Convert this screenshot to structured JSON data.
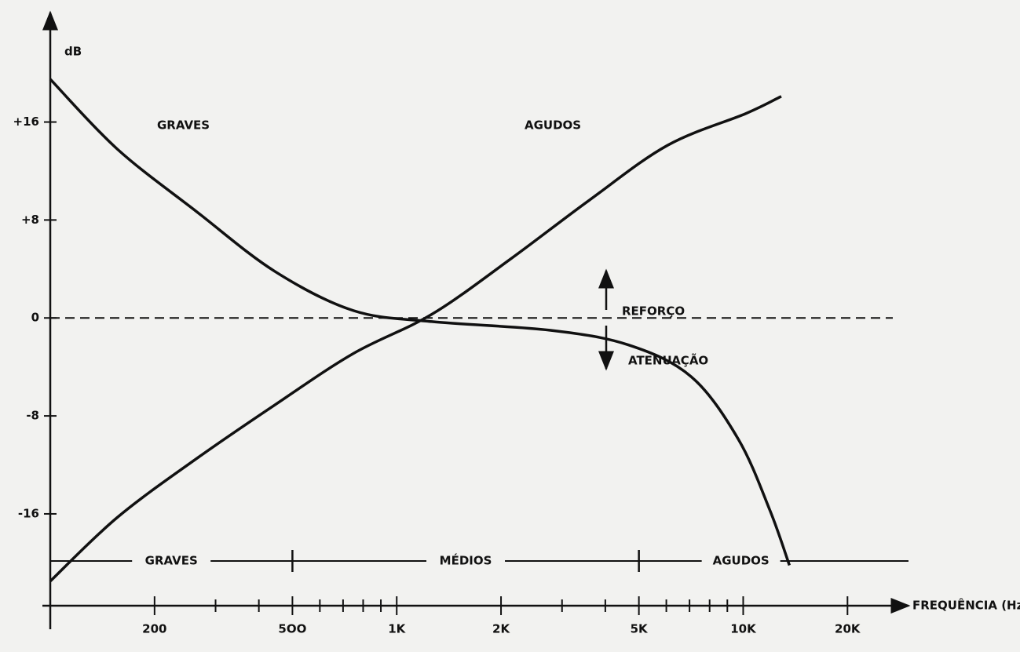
{
  "chart_data": {
    "type": "line",
    "ylabel": "dB",
    "xlabel": "FREQUÊNCIA (Hz)",
    "xscale": "log",
    "xlim": [
      100,
      30000
    ],
    "ylim": [
      -23.5,
      24.3
    ],
    "xticks": [
      {
        "value": 200,
        "label": "200"
      },
      {
        "value": 500,
        "label": "5OO"
      },
      {
        "value": 1000,
        "label": "1K"
      },
      {
        "value": 2000,
        "label": "2K"
      },
      {
        "value": 5000,
        "label": "5K"
      },
      {
        "value": 10000,
        "label": "10K"
      },
      {
        "value": 20000,
        "label": "20K"
      }
    ],
    "xminorticks": [
      300,
      400,
      600,
      700,
      800,
      900,
      3000,
      4000,
      6000,
      7000,
      8000,
      9000
    ],
    "yticks": [
      {
        "value": 16,
        "label": "+16"
      },
      {
        "value": 8,
        "label": "+8"
      },
      0,
      -8,
      -16
    ],
    "series": [
      {
        "color": "#111111",
        "x": [
          100,
          156,
          264,
          445,
          750,
          1263,
          2765,
          4660,
          7080,
          9680,
          11940,
          13600
        ],
        "values": [
          19.5,
          13.8,
          8.7,
          3.8,
          0.6,
          -0.3,
          -1.0,
          -2.2,
          -4.8,
          -9.9,
          -15.7,
          -20.2
        ]
      },
      {
        "color": "#111111",
        "x": [
          100,
          156,
          264,
          445,
          750,
          1263,
          2128,
          3590,
          6050,
          10190,
          12880
        ],
        "values": [
          -21.5,
          -16.3,
          -11.5,
          -7.1,
          -2.9,
          0.3,
          4.8,
          9.6,
          14.1,
          16.7,
          18.1
        ]
      }
    ],
    "annotations": [
      "GRAVES",
      "AGUDOS",
      "REFORÇO",
      "ATENUAÇÃO"
    ],
    "bands": [
      {
        "label": "GRAVES",
        "from": 100,
        "to": 500
      },
      {
        "label": "MÉDIOS",
        "from": 500,
        "to": 5000
      },
      {
        "label": "AGUDOS",
        "from": 5000,
        "to": 30000
      }
    ]
  }
}
